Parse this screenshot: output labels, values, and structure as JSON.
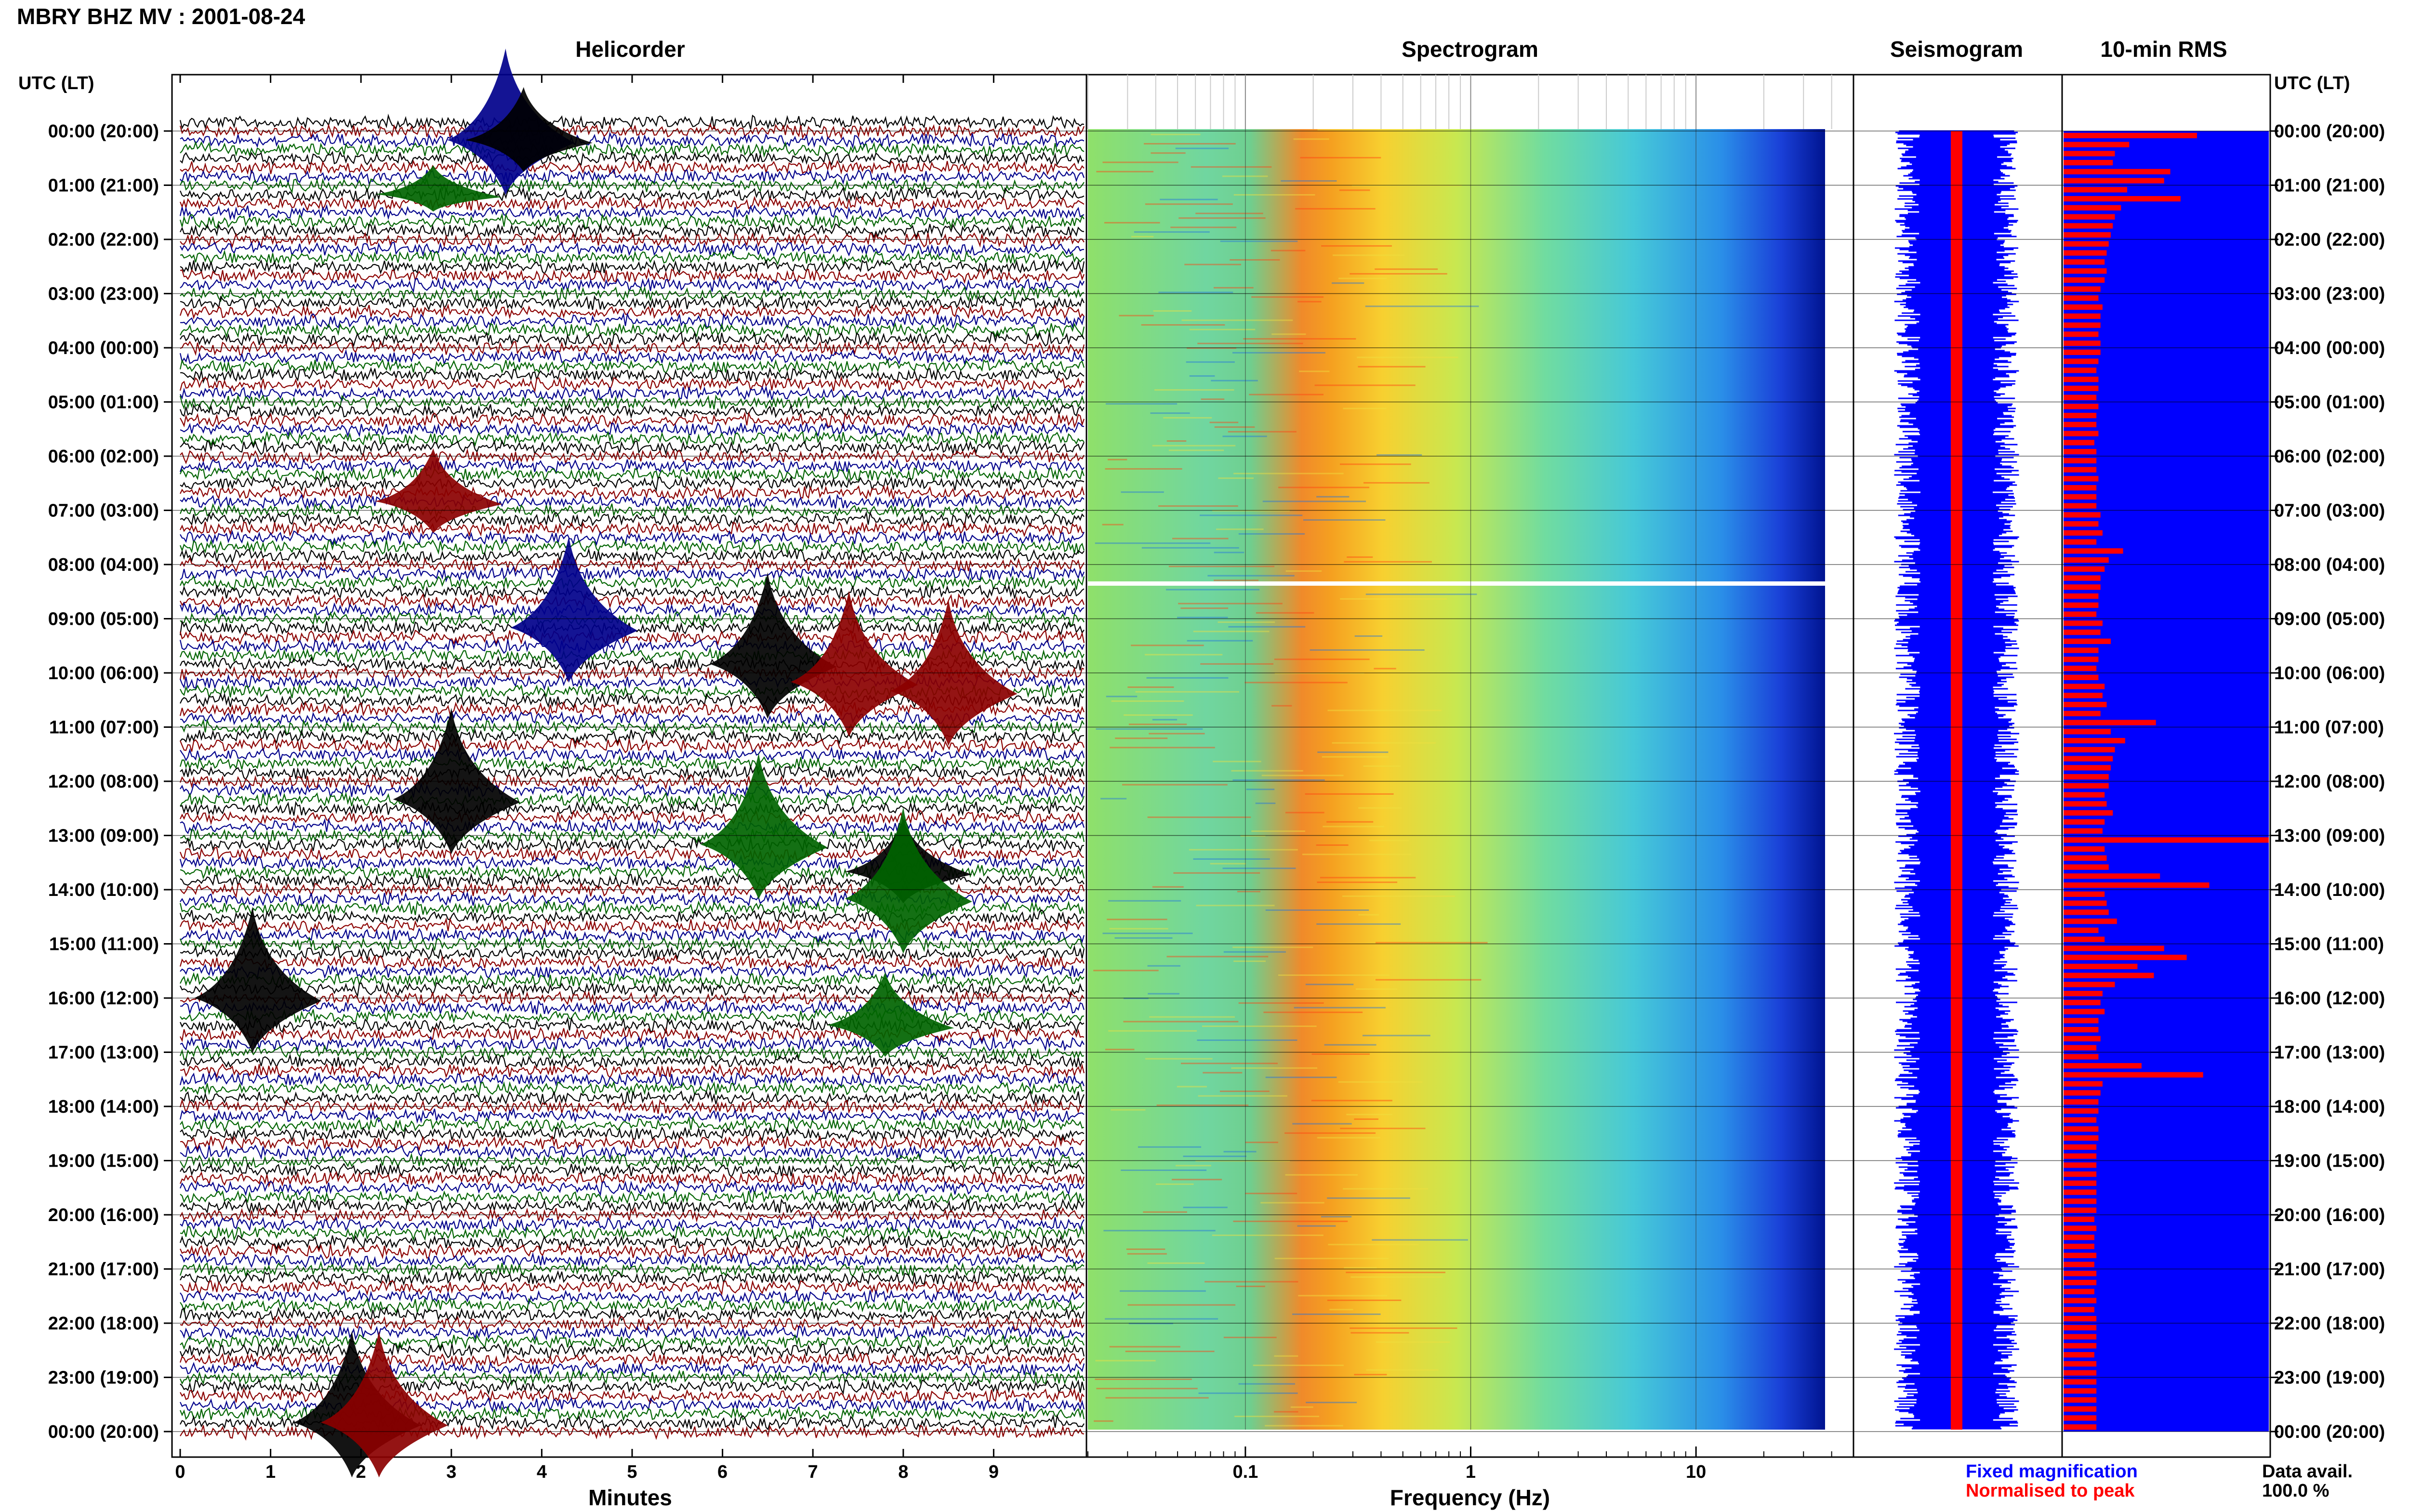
{
  "header": {
    "title": "MBRY BHZ MV : 2001-08-24",
    "time_axis_label": "UTC (LT)",
    "time_axis_label_right": "UTC (LT)"
  },
  "panels": {
    "helicorder": "Helicorder",
    "spectrogram": "Spectrogram",
    "seismogram": "Seismogram",
    "rms": "10-min RMS"
  },
  "time_labels": [
    "00:00 (20:00)",
    "01:00 (21:00)",
    "02:00 (22:00)",
    "03:00 (23:00)",
    "04:00 (00:00)",
    "05:00 (01:00)",
    "06:00 (02:00)",
    "07:00 (03:00)",
    "08:00 (04:00)",
    "09:00 (05:00)",
    "10:00 (06:00)",
    "11:00 (07:00)",
    "12:00 (08:00)",
    "13:00 (09:00)",
    "14:00 (10:00)",
    "15:00 (11:00)",
    "16:00 (12:00)",
    "17:00 (13:00)",
    "18:00 (14:00)",
    "19:00 (15:00)",
    "20:00 (16:00)",
    "21:00 (17:00)",
    "22:00 (18:00)",
    "23:00 (19:00)",
    "00:00 (20:00)"
  ],
  "legend": {
    "fixed": "Fixed magnification",
    "normalised": "Normalised to peak",
    "data_avail_label": "Data avail.",
    "data_avail_value": "100.0 %"
  },
  "colors": {
    "helicorder_lines": [
      "#000000",
      "#8b0000",
      "#00008b",
      "#006400"
    ],
    "fixed": "#0000ff",
    "normalised": "#ff0000",
    "spectrogram_low": "#00008b",
    "spectrogram_high": "#ff2000"
  },
  "chart_data": [
    {
      "type": "line",
      "panel": "helicorder",
      "title": "Helicorder",
      "xlabel": "Minutes",
      "x_ticks": [
        0,
        1,
        2,
        3,
        4,
        5,
        6,
        7,
        8,
        9
      ],
      "xlim": [
        0,
        10
      ],
      "row_minutes": 10,
      "rows_per_hour": 6,
      "line_colors_cycle": [
        "black",
        "dark red",
        "dark blue",
        "dark green"
      ],
      "events": [
        {
          "time_utc": "23:50",
          "minute": 1.9,
          "color": "black",
          "amplitude": "high"
        },
        {
          "time_utc": "23:50",
          "minute": 2.2,
          "color": "dark red",
          "amplitude": "high"
        },
        {
          "time_utc": "00:10",
          "minute": 3.6,
          "color": "dark blue",
          "amplitude": "high"
        },
        {
          "time_utc": "00:10",
          "minute": 3.8,
          "color": "black",
          "amplitude": "medium"
        },
        {
          "time_utc": "01:10",
          "minute": 2.8,
          "color": "dark green",
          "amplitude": "low"
        },
        {
          "time_utc": "06:50",
          "minute": 2.8,
          "color": "dark red",
          "amplitude": "medium"
        },
        {
          "time_utc": "09:10",
          "minute": 4.3,
          "color": "dark blue",
          "amplitude": "high"
        },
        {
          "time_utc": "09:50",
          "minute": 6.5,
          "color": "black",
          "amplitude": "high"
        },
        {
          "time_utc": "10:10",
          "minute": 7.4,
          "color": "dark red",
          "amplitude": "high"
        },
        {
          "time_utc": "10:20",
          "minute": 8.5,
          "color": "dark red",
          "amplitude": "high"
        },
        {
          "time_utc": "12:20",
          "minute": 3.0,
          "color": "black",
          "amplitude": "high"
        },
        {
          "time_utc": "13:10",
          "minute": 6.4,
          "color": "dark green",
          "amplitude": "high"
        },
        {
          "time_utc": "13:40",
          "minute": 8.0,
          "color": "black",
          "amplitude": "medium"
        },
        {
          "time_utc": "14:10",
          "minute": 8.0,
          "color": "dark green",
          "amplitude": "high"
        },
        {
          "time_utc": "16:00",
          "minute": 0.8,
          "color": "black",
          "amplitude": "high"
        },
        {
          "time_utc": "16:30",
          "minute": 7.8,
          "color": "dark green",
          "amplitude": "medium"
        }
      ]
    },
    {
      "type": "heatmap",
      "panel": "spectrogram",
      "title": "Spectrogram",
      "xlabel": "Frequency (Hz)",
      "x_scale": "log",
      "xlim": [
        0.02,
        50
      ],
      "x_ticks": [
        0.1,
        1,
        10
      ],
      "peak_band_hz": [
        0.25,
        0.5
      ],
      "band_profile": [
        {
          "f": 0.02,
          "level": 0.45
        },
        {
          "f": 0.05,
          "level": 0.48
        },
        {
          "f": 0.1,
          "level": 0.45
        },
        {
          "f": 0.15,
          "level": 0.52
        },
        {
          "f": 0.22,
          "level": 0.92
        },
        {
          "f": 0.3,
          "level": 0.95
        },
        {
          "f": 0.5,
          "level": 0.85
        },
        {
          "f": 0.8,
          "level": 0.68
        },
        {
          "f": 1.5,
          "level": 0.55
        },
        {
          "f": 3,
          "level": 0.48
        },
        {
          "f": 6,
          "level": 0.38
        },
        {
          "f": 10,
          "level": 0.3
        },
        {
          "f": 20,
          "level": 0.12
        },
        {
          "f": 40,
          "level": 0.02
        }
      ],
      "gap_time_utc": "08:20"
    },
    {
      "type": "line",
      "panel": "seismogram",
      "title": "Seismogram",
      "series": [
        {
          "name": "Fixed magnification",
          "color": "#0000ff"
        },
        {
          "name": "Normalised to peak",
          "color": "#ff0000"
        }
      ]
    },
    {
      "type": "bar",
      "panel": "rms",
      "title": "10-min RMS",
      "orientation": "horizontal",
      "interval_minutes": 10,
      "series": [
        {
          "name": "Normalised to peak",
          "color": "#ff0000"
        },
        {
          "name": "Fixed magnification",
          "color": "#0000ff"
        }
      ],
      "normalised_values": [
        0.65,
        0.32,
        0.25,
        0.24,
        0.52,
        0.49,
        0.31,
        0.57,
        0.28,
        0.25,
        0.24,
        0.23,
        0.22,
        0.21,
        0.2,
        0.21,
        0.2,
        0.18,
        0.17,
        0.19,
        0.18,
        0.18,
        0.17,
        0.18,
        0.18,
        0.17,
        0.16,
        0.17,
        0.17,
        0.16,
        0.17,
        0.16,
        0.16,
        0.17,
        0.15,
        0.16,
        0.16,
        0.16,
        0.17,
        0.16,
        0.16,
        0.16,
        0.18,
        0.17,
        0.19,
        0.16,
        0.29,
        0.22,
        0.2,
        0.18,
        0.18,
        0.17,
        0.17,
        0.16,
        0.19,
        0.18,
        0.23,
        0.17,
        0.17,
        0.16,
        0.17,
        0.2,
        0.19,
        0.21,
        0.18,
        0.45,
        0.23,
        0.3,
        0.25,
        0.24,
        0.23,
        0.22,
        0.22,
        0.2,
        0.21,
        0.24,
        0.2,
        0.19,
        1.0,
        0.2,
        0.21,
        0.22,
        0.47,
        0.71,
        0.2,
        0.21,
        0.22,
        0.26,
        0.17,
        0.2,
        0.49,
        0.6,
        0.36,
        0.44,
        0.25,
        0.19,
        0.18,
        0.2,
        0.17,
        0.17,
        0.18,
        0.16,
        0.17,
        0.38,
        0.68,
        0.19,
        0.18,
        0.17,
        0.17,
        0.16,
        0.17,
        0.17,
        0.16,
        0.16,
        0.16,
        0.16,
        0.16,
        0.16,
        0.16,
        0.16,
        0.15,
        0.16,
        0.15,
        0.15,
        0.16,
        0.15,
        0.16,
        0.16,
        0.15,
        0.16,
        0.15,
        0.16,
        0.16,
        0.16,
        0.16,
        0.15,
        0.16,
        0.16,
        0.16,
        0.16,
        0.16,
        0.16,
        0.16,
        0.16
      ]
    }
  ]
}
